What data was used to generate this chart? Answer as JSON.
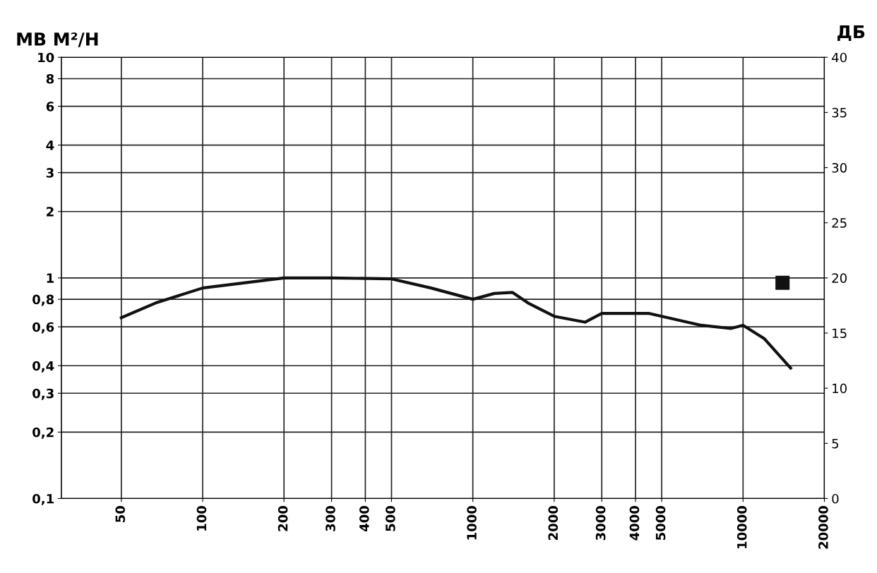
{
  "chart_data": {
    "type": "line",
    "ylabel": "МВ М²/Н",
    "y2label": "ДБ",
    "log": "xy",
    "grid": true,
    "xlim": [
      30,
      20000
    ],
    "xticks": [
      50,
      100,
      200,
      300,
      400,
      500,
      1000,
      2000,
      3000,
      4000,
      5000,
      10000,
      20000
    ],
    "ylim": [
      0.1,
      10
    ],
    "yticks": [
      {
        "value": 0.1,
        "label": "0,1"
      },
      {
        "value": 0.2,
        "label": "0,2"
      },
      {
        "value": 0.3,
        "label": "0,3"
      },
      {
        "value": 0.4,
        "label": "0,4"
      },
      {
        "value": 0.6,
        "label": "0,6"
      },
      {
        "value": 0.8,
        "label": "0,8"
      },
      1,
      2,
      3,
      4,
      6,
      8,
      10
    ],
    "y2lim": [
      0,
      40
    ],
    "y2ticks": [
      0,
      5,
      10,
      15,
      20,
      25,
      30,
      35,
      40
    ],
    "series": [
      {
        "color": "#111111",
        "marker": "none",
        "line_style": "solid",
        "x": [
          50,
          67,
          100,
          200,
          300,
          500,
          700,
          1000,
          1200,
          1400,
          1600,
          2000,
          2600,
          3000,
          4500,
          7000,
          9000,
          10000,
          12000,
          15000
        ],
        "values": [
          0.66,
          0.77,
          0.9,
          1.0,
          1.0,
          0.99,
          0.9,
          0.8,
          0.85,
          0.86,
          0.77,
          0.67,
          0.63,
          0.69,
          0.69,
          0.61,
          0.59,
          0.61,
          0.53,
          0.39
        ]
      },
      {
        "type": "scatter",
        "color": "#111111",
        "marker": "square",
        "x": [
          14000
        ],
        "values": [
          0.95
        ]
      }
    ]
  }
}
